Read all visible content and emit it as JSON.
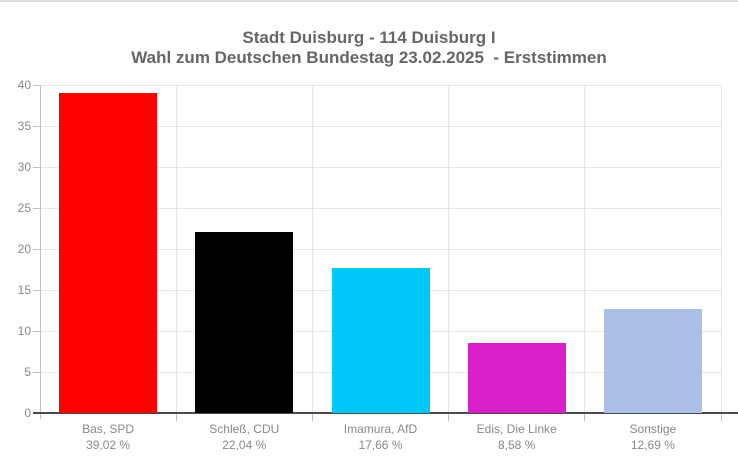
{
  "header": {
    "title": "Stadt Duisburg - 114 Duisburg I",
    "subtitle": "Wahl zum Deutschen Bundestag 23.02.2025  - Erststimmen"
  },
  "chart_data": {
    "type": "bar",
    "title": "Stadt Duisburg - 114 Duisburg I",
    "subtitle": "Wahl zum Deutschen Bundestag 23.02.2025  - Erststimmen",
    "categories": [
      "Bas, SPD",
      "Schleß, CDU",
      "Imamura, AfD",
      "Edis, Die Linke",
      "Sonstige"
    ],
    "values": [
      39.02,
      22.04,
      17.66,
      8.58,
      12.69
    ],
    "value_labels": [
      "39,02 %",
      "22,04 %",
      "17,66 %",
      "8,58 %",
      "12,69 %"
    ],
    "bar_colors": [
      "#ff0000",
      "#000000",
      "#00c8fb",
      "#d920c8",
      "#acbfe4"
    ],
    "xlabel": "",
    "ylabel": "",
    "ylim": [
      0,
      40
    ],
    "yticks": [
      0,
      5,
      10,
      15,
      20,
      25,
      30,
      35,
      40
    ],
    "ytick_labels": [
      "0",
      "5",
      "10",
      "15",
      "20",
      "25",
      "30",
      "35",
      "40"
    ],
    "grid": true,
    "legend": "none"
  },
  "style": {
    "title_color": "#666666",
    "axis_label_color": "#888888",
    "gridline_color": "#e6e6e6",
    "y_axis_color": "#c0c0c0",
    "tick_color": "#c0c0c0",
    "x_axis_color": "#4a4a4a",
    "background_color": "#ffffff",
    "top_border_color": "#dcdcdc"
  }
}
